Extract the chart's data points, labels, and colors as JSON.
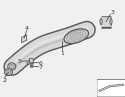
{
  "bg_color": "#f0f0f0",
  "fig_bg": "#f0f0f0",
  "pipe_color": "#d8d8d8",
  "pipe_edge": "#555555",
  "line_color": "#333333",
  "label_color": "#333333",
  "label_fontsize": 4.5
}
